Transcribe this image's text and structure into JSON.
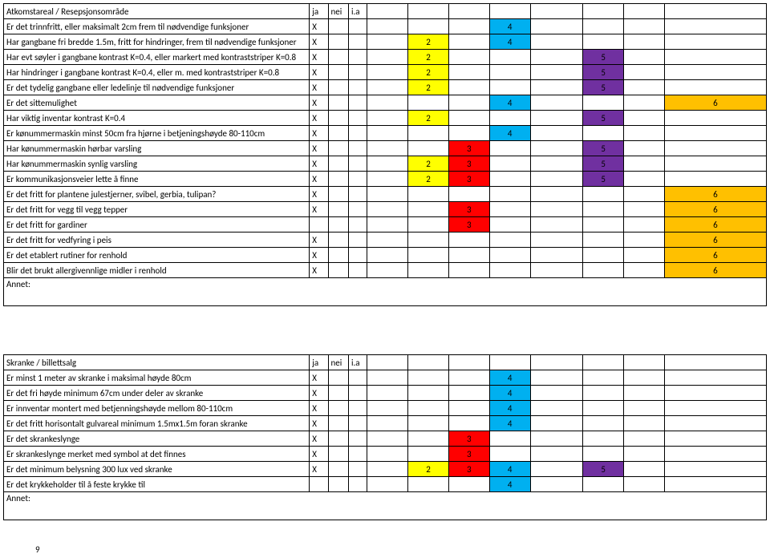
{
  "colors": {
    "green": "#00b050",
    "red": "#ff0000",
    "yellow": "#ffff00",
    "blue": "#00b0f0",
    "purple": "#7030a0",
    "orange": "#ffc000"
  },
  "table1": {
    "header": [
      "Atkomstareal / Resepsjonsområde",
      "ja",
      "nei",
      "i.a",
      "",
      "",
      "",
      "",
      "",
      "",
      "",
      ""
    ],
    "rows": [
      {
        "desc": "Er det trinnfritt, eller maksimalt 2cm frem til nødvendige funksjoner",
        "ja": "X",
        "cells": [
          {
            "i": 6,
            "v": "4",
            "c": "blue"
          }
        ]
      },
      {
        "desc": "Har gangbane fri bredde 1.5m, fritt for hindringer, frem til nødvendige funksjoner",
        "ja": "X",
        "cells": [
          {
            "i": 4,
            "v": "2",
            "c": "yellow"
          },
          {
            "i": 6,
            "v": "4",
            "c": "blue"
          }
        ]
      },
      {
        "desc": "Har evt søyler i gangbane kontrast K=0.4, eller markert med kontraststriper K=0.8",
        "ja": "X",
        "cells": [
          {
            "i": 4,
            "v": "2",
            "c": "yellow"
          },
          {
            "i": 7,
            "v": "5",
            "c": "purple"
          }
        ]
      },
      {
        "desc": "Har hindringer i gangbane kontrast K=0.4, eller m. med kontraststriper K=0.8",
        "ja": "X",
        "cells": [
          {
            "i": 4,
            "v": "2",
            "c": "yellow"
          },
          {
            "i": 7,
            "v": "5",
            "c": "purple"
          }
        ]
      },
      {
        "desc": "Er det tydelig gangbane eller ledelinje til nødvendige funksjoner",
        "ja": "X",
        "cells": [
          {
            "i": 4,
            "v": "2",
            "c": "yellow"
          },
          {
            "i": 7,
            "v": "5",
            "c": "purple"
          }
        ]
      },
      {
        "desc": "Er det sittemulighet",
        "ja": "X",
        "cells": [
          {
            "i": 6,
            "v": "4",
            "c": "blue"
          },
          {
            "i": 8,
            "v": "6",
            "c": "orange"
          }
        ]
      },
      {
        "desc": "Har viktig inventar kontrast K=0.4",
        "ja": "X",
        "cells": [
          {
            "i": 4,
            "v": "2",
            "c": "yellow"
          },
          {
            "i": 7,
            "v": "5",
            "c": "purple"
          }
        ]
      },
      {
        "desc": "Er kønummermaskin minst 50cm fra hjørne i betjeningshøyde  80-110cm",
        "ja": "X",
        "cells": [
          {
            "i": 6,
            "v": "4",
            "c": "blue"
          }
        ]
      },
      {
        "desc": "Har kønummermaskin hørbar varsling",
        "ja": "X",
        "cells": [
          {
            "i": 5,
            "v": "3",
            "c": "red"
          },
          {
            "i": 7,
            "v": "5",
            "c": "purple"
          }
        ]
      },
      {
        "desc": "Har kønummermaskin synlig varsling",
        "ja": "X",
        "cells": [
          {
            "i": 4,
            "v": "2",
            "c": "yellow"
          },
          {
            "i": 5,
            "v": "3",
            "c": "red"
          },
          {
            "i": 7,
            "v": "5",
            "c": "purple"
          }
        ]
      },
      {
        "desc": "Er kommunikasjonsveier lette å finne",
        "ja": "X",
        "cells": [
          {
            "i": 4,
            "v": "2",
            "c": "yellow"
          },
          {
            "i": 5,
            "v": "3",
            "c": "red"
          },
          {
            "i": 7,
            "v": "5",
            "c": "purple"
          }
        ]
      },
      {
        "desc": "Er det fritt for plantene julestjerner, svibel, gerbia, tulipan?",
        "ja": "X",
        "cells": [
          {
            "i": 8,
            "v": "6",
            "c": "orange"
          }
        ]
      },
      {
        "desc": "Er det fritt for vegg til vegg tepper",
        "ja": "X",
        "cells": [
          {
            "i": 5,
            "v": "3",
            "c": "red"
          },
          {
            "i": 8,
            "v": "6",
            "c": "orange"
          }
        ]
      },
      {
        "desc": "Er det fritt for gardiner",
        "ja": "",
        "cells": [
          {
            "i": 5,
            "v": "3",
            "c": "red"
          },
          {
            "i": 8,
            "v": "6",
            "c": "orange"
          }
        ]
      },
      {
        "desc": "Er det fritt for vedfyring i peis",
        "ja": "X",
        "cells": [
          {
            "i": 8,
            "v": "6",
            "c": "orange"
          }
        ]
      },
      {
        "desc": "Er det etablert rutiner for renhold",
        "ja": "X",
        "cells": [
          {
            "i": 8,
            "v": "6",
            "c": "orange"
          }
        ]
      },
      {
        "desc": "Blir det brukt allergivennlige midler i renhold",
        "ja": "X",
        "cells": [
          {
            "i": 8,
            "v": "6",
            "c": "orange"
          }
        ]
      }
    ],
    "annet": "Annet:"
  },
  "table2": {
    "header": [
      "Skranke / billettsalg",
      "ja",
      "nei",
      "i.a",
      "",
      "",
      "",
      "",
      "",
      "",
      "",
      ""
    ],
    "rows": [
      {
        "desc": "Er minst 1 meter av skranke i maksimal høyde 80cm",
        "ja": "X",
        "cells": [
          {
            "i": 6,
            "v": "4",
            "c": "blue"
          }
        ]
      },
      {
        "desc": "Er det fri høyde minimum 67cm under deler av skranke",
        "ja": "X",
        "cells": [
          {
            "i": 6,
            "v": "4",
            "c": "blue"
          }
        ]
      },
      {
        "desc": "Er innventar montert med betjenningshøyde mellom 80-110cm",
        "ja": "X",
        "cells": [
          {
            "i": 6,
            "v": "4",
            "c": "blue"
          }
        ]
      },
      {
        "desc": "Er det fritt horisontalt gulvareal minimum 1.5mx1.5m foran skranke",
        "ja": "X",
        "cells": [
          {
            "i": 6,
            "v": "4",
            "c": "blue"
          }
        ]
      },
      {
        "desc": "Er det skrankeslynge",
        "ja": "X",
        "cells": [
          {
            "i": 5,
            "v": "3",
            "c": "red"
          }
        ]
      },
      {
        "desc": "Er skrankeslynge merket med symbol at det finnes",
        "ja": "X",
        "cells": [
          {
            "i": 5,
            "v": "3",
            "c": "red"
          }
        ]
      },
      {
        "desc": "Er det minimum belysning 300 lux ved skranke",
        "ja": "X",
        "cells": [
          {
            "i": 4,
            "v": "2",
            "c": "yellow"
          },
          {
            "i": 5,
            "v": "3",
            "c": "red"
          },
          {
            "i": 6,
            "v": "4",
            "c": "blue"
          },
          {
            "i": 7,
            "v": "5",
            "c": "purple"
          }
        ]
      },
      {
        "desc": "Er det krykkeholder til å feste krykke til",
        "ja": "",
        "cells": [
          {
            "i": 6,
            "v": "4",
            "c": "blue"
          }
        ]
      }
    ],
    "annet": "Annet:"
  },
  "pagenum": "9"
}
